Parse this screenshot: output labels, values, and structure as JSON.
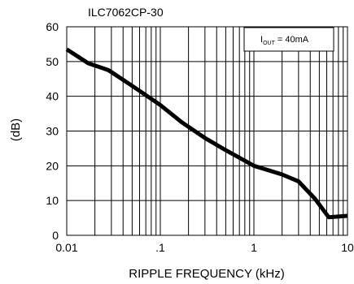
{
  "chart_data": {
    "type": "line",
    "title": "ILC7062CP-30",
    "xlabel": "RIPPLE FREQUENCY (kHz)",
    "ylabel": "(dB)",
    "xscale": "log",
    "xlim": [
      0.01,
      10
    ],
    "ylim": [
      0,
      60
    ],
    "grid": true,
    "x_ticks": [
      {
        "value": 0.01,
        "label": "0.01"
      },
      {
        "value": 0.1,
        "label": ".1"
      },
      {
        "value": 1,
        "label": "1"
      },
      {
        "value": 10,
        "label": "10"
      }
    ],
    "y_ticks": [
      {
        "value": 0,
        "label": "0"
      },
      {
        "value": 10,
        "label": "10"
      },
      {
        "value": 20,
        "label": "20"
      },
      {
        "value": 30,
        "label": "30"
      },
      {
        "value": 40,
        "label": "40"
      },
      {
        "value": 50,
        "label": "50"
      },
      {
        "value": 60,
        "label": "60"
      }
    ],
    "annotation": {
      "prefix": "I",
      "subscript": "OUT",
      "suffix": " = 40mA"
    },
    "series": [
      {
        "x": [
          0.01,
          0.017,
          0.028,
          0.05,
          0.1,
          0.17,
          0.3,
          0.5,
          1,
          2,
          3,
          4.5,
          6.3,
          10
        ],
        "y": [
          53.5,
          49.5,
          47.5,
          43,
          37.5,
          32.5,
          28,
          24.5,
          20,
          17.5,
          15.5,
          10.5,
          5.2,
          5.6
        ]
      }
    ]
  }
}
